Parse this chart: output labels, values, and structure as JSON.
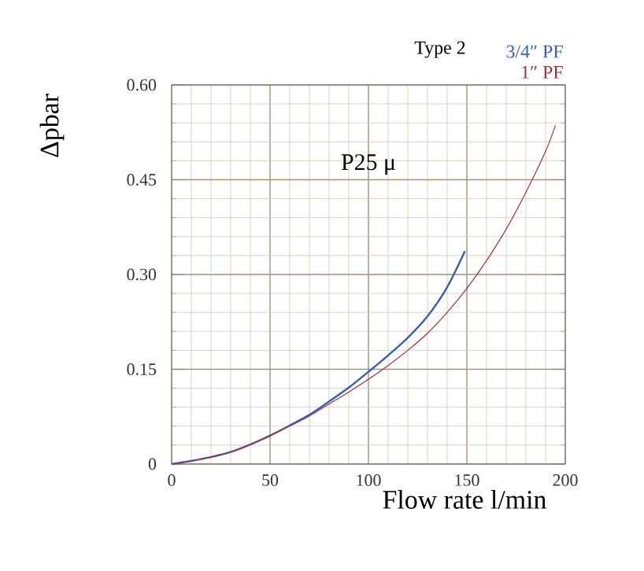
{
  "chart_data": {
    "type": "line",
    "subtitle": "Type 2",
    "xlabel": "Flow rate  l/min",
    "ylabel": "Δpbar",
    "annotations": [
      "P25 μ"
    ],
    "xlim": [
      0,
      200
    ],
    "xticks": [
      0,
      50,
      100,
      150,
      200
    ],
    "ylim": [
      0,
      0.6
    ],
    "yticks": [
      0,
      0.15,
      {
        "value": 0.3,
        "label": "0.30"
      },
      0.45,
      {
        "value": 0.6,
        "label": "0.60"
      }
    ],
    "grid": true,
    "legend": "top right",
    "marker": "none",
    "line_style": "solid",
    "series": [
      {
        "name": "3/4″  PF",
        "color": "#3a5fb0",
        "x": [
          0,
          10,
          20,
          30,
          40,
          50,
          60,
          70,
          80,
          90,
          100,
          110,
          120,
          130,
          140,
          149
        ],
        "values": [
          0,
          0.005,
          0.011,
          0.019,
          0.031,
          0.045,
          0.061,
          0.078,
          0.099,
          0.121,
          0.146,
          0.172,
          0.2,
          0.234,
          0.28,
          0.337
        ]
      },
      {
        "name": "1″  PF",
        "color": "#a0323c",
        "x": [
          0,
          10,
          20,
          30,
          40,
          50,
          60,
          70,
          80,
          90,
          100,
          110,
          120,
          130,
          140,
          150,
          160,
          170,
          180,
          190,
          195
        ],
        "values": [
          0,
          0.005,
          0.011,
          0.019,
          0.031,
          0.045,
          0.06,
          0.076,
          0.095,
          0.114,
          0.134,
          0.156,
          0.18,
          0.207,
          0.24,
          0.278,
          0.322,
          0.372,
          0.43,
          0.495,
          0.536
        ]
      }
    ]
  }
}
